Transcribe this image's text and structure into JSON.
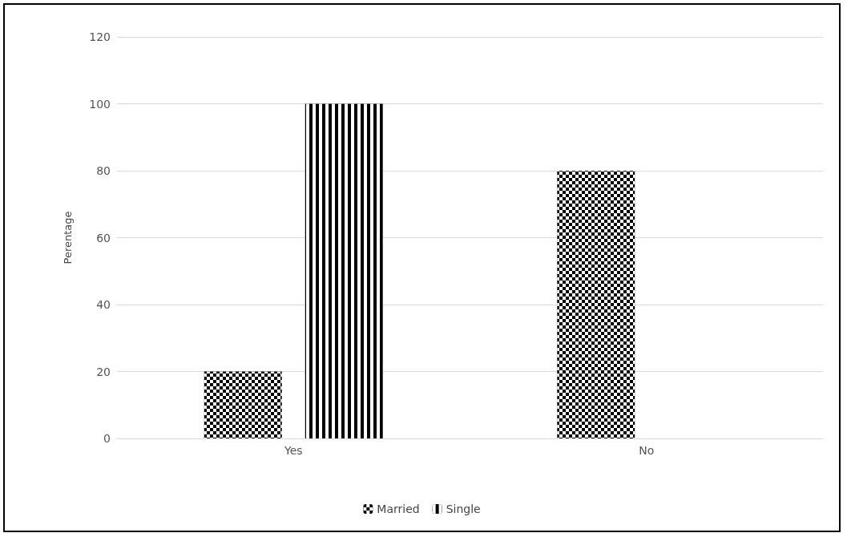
{
  "chart_data": {
    "type": "bar",
    "ylabel": "Perentage",
    "categories": [
      "Yes",
      "No"
    ],
    "series": [
      {
        "name": "Married",
        "color": "#000000",
        "values": [
          20,
          80
        ]
      },
      {
        "name": "Single",
        "color": "#000000",
        "values": [
          100,
          0
        ]
      }
    ],
    "ylim": [
      0,
      120
    ],
    "yticks": [
      0,
      20,
      40,
      60,
      80,
      100,
      120
    ],
    "grid": "y",
    "legend": "bottom"
  }
}
